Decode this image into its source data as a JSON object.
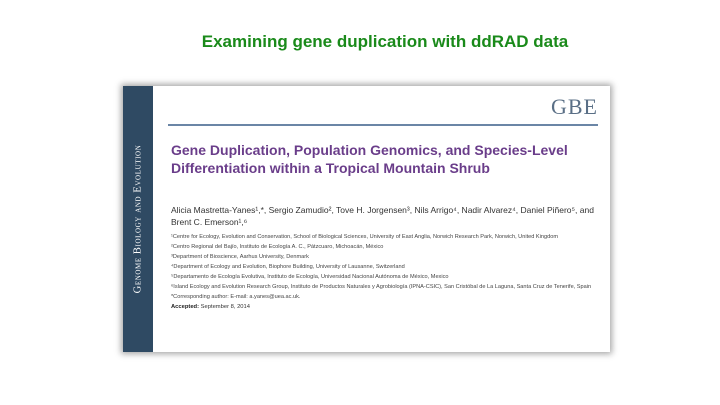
{
  "slide": {
    "title": "Examining gene duplication with ddRAD data"
  },
  "paper": {
    "spine_text": "Genome Biology and Evolution",
    "journal_logo": "GBE",
    "title": "Gene Duplication, Population Genomics, and Species-Level Differentiation within a Tropical Mountain Shrub",
    "authors": "Alicia Mastretta-Yanes¹,*, Sergio Zamudio², Tove H. Jorgensen³, Nils Arrigo⁴, Nadir Alvarez⁴, Daniel Piñero⁵, and Brent C. Emerson¹,⁶",
    "affiliations": [
      "¹Centre for Ecology, Evolution and Conservation, School of Biological Sciences, University of East Anglia, Norwich Research Park, Norwich, United Kingdom",
      "²Centro Regional del Bajío, Instituto de Ecología A. C., Pátzcuaro, Michoacán, México",
      "³Department of Bioscience, Aarhus University, Denmark",
      "⁴Department of Ecology and Evolution, Biophore Building, University of Lausanne, Switzerland",
      "⁵Departamento de Ecología Evolutiva, Instituto de Ecología, Universidad Nacional Autónoma de México, Mexico",
      "⁶Island Ecology and Evolution Research Group, Instituto de Productos Naturales y Agrobiología (IPNA-CSIC), San Cristóbal de La Laguna, Santa Cruz de Tenerife, Spain",
      "*Corresponding author: E-mail: a.yanes@uea.ac.uk."
    ],
    "accepted_label": "Accepted:",
    "accepted_date": "September 8, 2014"
  }
}
